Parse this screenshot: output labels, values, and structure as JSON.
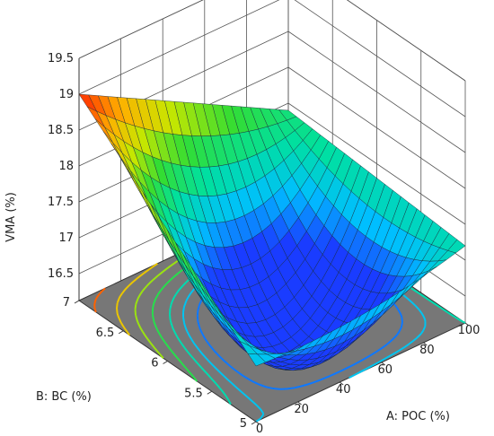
{
  "chart_data": {
    "type": "surface3d",
    "zlabel": "VMA (%)",
    "xlabel": "A: POC (%)",
    "ylabel": "B: BC (%)",
    "x_ticks": [
      "0",
      "20",
      "40",
      "60",
      "80",
      "100"
    ],
    "y_ticks": [
      "5",
      "5.5",
      "6",
      "6.5",
      "7"
    ],
    "z_ticks": [
      "16.5",
      "17",
      "17.5",
      "18",
      "18.5",
      "19",
      "19.5"
    ],
    "xlim": [
      0,
      100
    ],
    "ylim": [
      5,
      7
    ],
    "zlim": [
      16.2,
      19.5
    ],
    "corners": [
      {
        "x": 0,
        "y": 7,
        "z": 19.0
      },
      {
        "x": 100,
        "y": 7,
        "z": 17.4
      },
      {
        "x": 0,
        "y": 5,
        "z": 16.9
      },
      {
        "x": 100,
        "y": 5,
        "z": 17.2
      }
    ],
    "min_point": {
      "x": 45,
      "y": 5.2,
      "z": 16.4
    },
    "colormap": [
      "#1a3cff",
      "#00bfff",
      "#00e0a0",
      "#33dd33",
      "#c8e600",
      "#ffb000",
      "#ff2000"
    ],
    "floor_color": "#777777",
    "grid": true
  }
}
